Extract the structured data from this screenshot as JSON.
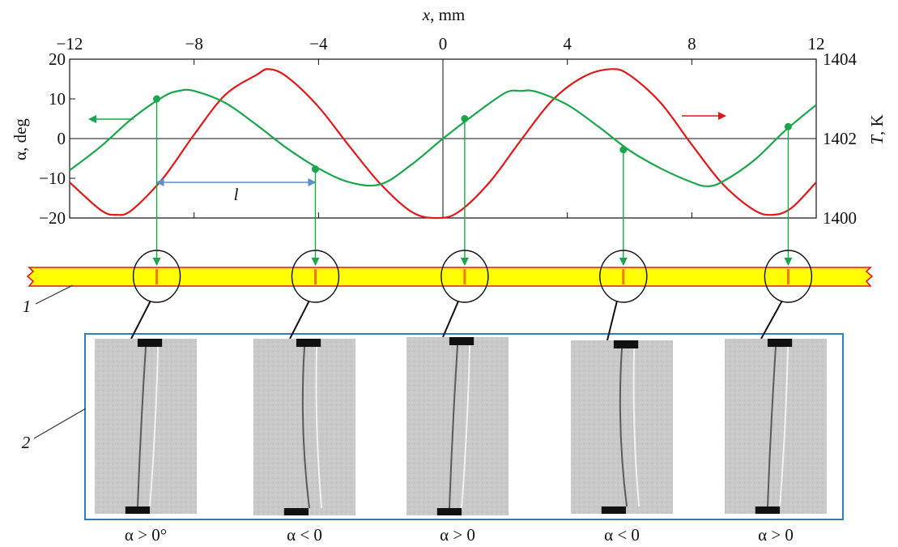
{
  "chart_data": {
    "type": "line",
    "xlabel": {
      "italic": "x",
      "rest": ", mm"
    },
    "ylabel_left": "α, deg",
    "ylabel_right": {
      "italic": "T",
      "rest": ", K"
    },
    "xlim": [
      -12,
      12
    ],
    "ylim_left": [
      -20,
      20
    ],
    "ylim_right": [
      1400,
      1404
    ],
    "x_ticks": [
      -12,
      -8,
      -4,
      0,
      4,
      8,
      12
    ],
    "x_tick_labels": [
      "−12",
      "−8",
      "−4",
      "0",
      "4",
      "8",
      "12"
    ],
    "y_ticks_left": [
      20,
      10,
      0,
      -10,
      -20
    ],
    "y_tick_labels_left": [
      "20",
      "10",
      "0",
      "−10",
      "−20"
    ],
    "y_ticks_right": [
      1404,
      1402,
      1400
    ],
    "y_tick_labels_right": [
      "1404",
      "1402",
      "1400"
    ],
    "series": [
      {
        "axis": "left",
        "color": "#1aa64a",
        "x": [
          -12,
          -11,
          -10,
          -9,
          -8.5,
          -8,
          -7,
          -6,
          -5,
          -4,
          -3,
          -2,
          -1,
          0,
          1,
          2,
          2.5,
          3,
          4,
          5,
          6,
          7,
          8,
          8.5,
          9,
          10,
          11,
          12
        ],
        "y": [
          -8,
          -2,
          5,
          10.5,
          12,
          12,
          9,
          3.5,
          -2.5,
          -7.5,
          -11,
          -11.5,
          -6.5,
          0,
          6,
          11.5,
          12,
          11.8,
          8.5,
          3,
          -3,
          -7.5,
          -11,
          -12,
          -10.8,
          -5.5,
          2,
          8.5
        ]
      },
      {
        "axis": "right",
        "color": "#e01818",
        "x": [
          -12,
          -11,
          -10.5,
          -10,
          -9,
          -8,
          -7,
          -6,
          -5.6,
          -5,
          -4,
          -3,
          -2,
          -1,
          -0.2,
          0.5,
          1.5,
          2.5,
          3.5,
          4.5,
          5.4,
          6,
          7,
          8,
          9,
          10,
          10.6,
          11.2,
          12
        ],
        "y": [
          1400.9,
          1400.2,
          1400.08,
          1400.2,
          1401.0,
          1402.1,
          1403.1,
          1403.6,
          1403.75,
          1403.55,
          1402.8,
          1401.8,
          1400.85,
          1400.15,
          1400.0,
          1400.15,
          1400.9,
          1401.95,
          1402.95,
          1403.55,
          1403.75,
          1403.6,
          1402.9,
          1401.85,
          1400.85,
          1400.2,
          1400.08,
          1400.25,
          1400.9
        ]
      }
    ],
    "points": [
      {
        "x": -9.2,
        "y": 10
      },
      {
        "x": -4.1,
        "y": -7.7
      },
      {
        "x": 0.7,
        "y": 5
      },
      {
        "x": 5.8,
        "y": -2.8
      },
      {
        "x": 11.1,
        "y": 3
      }
    ],
    "period_label": "l",
    "period_range": [
      -9.2,
      -4.1
    ],
    "strip_label": "1",
    "images_label": "2",
    "captions": [
      "α > 0°",
      "α < 0",
      "α > 0",
      "α < 0",
      "α > 0"
    ],
    "colors": {
      "alpha_curve": "#1aa64a",
      "temperature_curve": "#e01818",
      "period_arrow": "#5b8fc7",
      "strip_fill": "#ffff00",
      "strip_border": "#e01818",
      "slit": "#f07a00",
      "image_frame": "#2f7fc0"
    }
  }
}
